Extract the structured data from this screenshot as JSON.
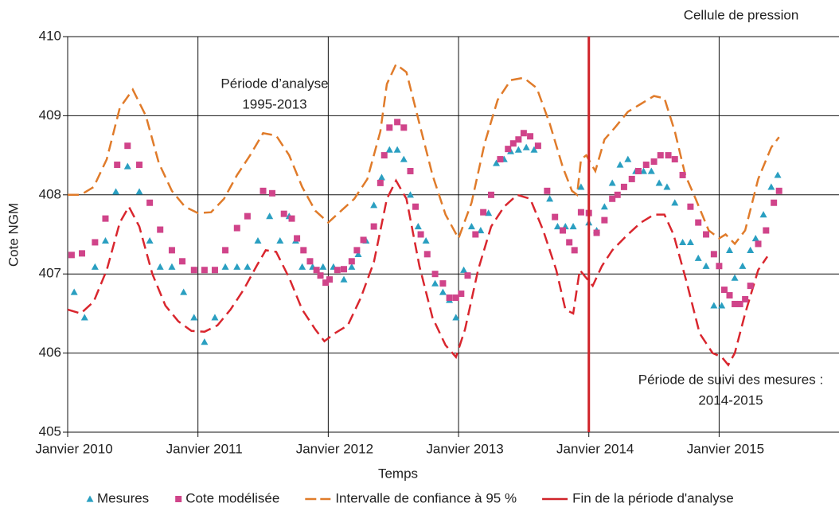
{
  "chart_data": {
    "type": "line",
    "x_label": "Temps",
    "y_label": "Cote NGM",
    "xlim": [
      2010,
      2015.92
    ],
    "ylim": [
      405,
      410
    ],
    "xticks": [
      {
        "value": 2010,
        "label": "Janvier 2010"
      },
      {
        "value": 2011,
        "label": "Janvier 2011"
      },
      {
        "value": 2012,
        "label": "Janvier 2012"
      },
      {
        "value": 2013,
        "label": "Janvier 2013"
      },
      {
        "value": 2014,
        "label": "Janvier 2014"
      },
      {
        "value": 2015,
        "label": "Janvier 2015"
      }
    ],
    "yticks": [
      405,
      406,
      407,
      408,
      409,
      410
    ],
    "grid": true,
    "series": [
      {
        "name": "Mesures",
        "type": "scatter",
        "marker": "triangle",
        "color": "#2a9fc1",
        "x": [
          2010.05,
          2010.13,
          2010.21,
          2010.29,
          2010.37,
          2010.46,
          2010.55,
          2010.63,
          2010.71,
          2010.8,
          2010.89,
          2010.97,
          2011.05,
          2011.13,
          2011.21,
          2011.3,
          2011.38,
          2011.46,
          2011.55,
          2011.63,
          2011.7,
          2011.75,
          2011.8,
          2011.88,
          2011.96,
          2012.04,
          2012.12,
          2012.18,
          2012.23,
          2012.29,
          2012.35,
          2012.41,
          2012.47,
          2012.53,
          2012.58,
          2012.63,
          2012.69,
          2012.75,
          2012.82,
          2012.88,
          2012.93,
          2012.98,
          2013.04,
          2013.1,
          2013.17,
          2013.23,
          2013.29,
          2013.35,
          2013.4,
          2013.46,
          2013.52,
          2013.58,
          2013.7,
          2013.76,
          2013.82,
          2013.88,
          2013.94,
          2014.0,
          2014.06,
          2014.12,
          2014.18,
          2014.24,
          2014.3,
          2014.36,
          2014.42,
          2014.48,
          2014.54,
          2014.6,
          2014.66,
          2014.72,
          2014.78,
          2014.84,
          2014.9,
          2014.96,
          2015.02,
          2015.08,
          2015.12,
          2015.18,
          2015.24,
          2015.28,
          2015.34,
          2015.4,
          2015.45
        ],
        "values": [
          406.77,
          406.45,
          407.09,
          407.42,
          408.04,
          408.36,
          408.04,
          407.42,
          407.09,
          407.09,
          406.77,
          406.45,
          406.14,
          406.45,
          407.09,
          407.09,
          407.09,
          407.42,
          407.73,
          407.42,
          407.73,
          407.42,
          407.09,
          407.09,
          407.09,
          407.09,
          406.93,
          407.09,
          407.25,
          407.42,
          407.87,
          408.22,
          408.57,
          408.57,
          408.45,
          408.0,
          407.6,
          407.42,
          406.88,
          406.77,
          406.67,
          406.45,
          407.05,
          407.6,
          407.55,
          407.77,
          408.4,
          408.45,
          408.55,
          408.57,
          408.6,
          408.57,
          407.95,
          407.6,
          407.6,
          407.6,
          408.1,
          407.65,
          407.55,
          407.85,
          408.15,
          408.38,
          408.45,
          408.3,
          408.3,
          408.3,
          408.15,
          408.1,
          407.9,
          407.4,
          407.4,
          407.2,
          407.1,
          406.6,
          406.6,
          407.3,
          406.95,
          407.1,
          407.3,
          407.45,
          407.75,
          408.1,
          408.25
        ]
      },
      {
        "name": "Cote modélisée",
        "type": "scatter",
        "marker": "square",
        "color": "#d0448a",
        "x": [
          2010.03,
          2010.11,
          2010.21,
          2010.29,
          2010.38,
          2010.46,
          2010.55,
          2010.63,
          2010.71,
          2010.8,
          2010.88,
          2010.97,
          2011.05,
          2011.13,
          2011.21,
          2011.3,
          2011.38,
          2011.5,
          2011.57,
          2011.66,
          2011.72,
          2011.76,
          2011.81,
          2011.86,
          2011.91,
          2011.94,
          2011.98,
          2012.01,
          2012.07,
          2012.12,
          2012.18,
          2012.22,
          2012.27,
          2012.35,
          2012.4,
          2012.43,
          2012.47,
          2012.53,
          2012.58,
          2012.63,
          2012.67,
          2012.71,
          2012.76,
          2012.82,
          2012.88,
          2012.93,
          2012.98,
          2013.02,
          2013.07,
          2013.13,
          2013.19,
          2013.25,
          2013.32,
          2013.38,
          2013.42,
          2013.46,
          2013.5,
          2013.55,
          2013.61,
          2013.68,
          2013.74,
          2013.8,
          2013.85,
          2013.89,
          2013.94,
          2014.0,
          2014.06,
          2014.12,
          2014.18,
          2014.22,
          2014.27,
          2014.33,
          2014.38,
          2014.44,
          2014.5,
          2014.55,
          2014.61,
          2014.66,
          2014.72,
          2014.78,
          2014.84,
          2014.9,
          2014.96,
          2015.0,
          2015.04,
          2015.08,
          2015.12,
          2015.16,
          2015.2,
          2015.24,
          2015.3,
          2015.36,
          2015.42,
          2015.46
        ],
        "values": [
          407.24,
          407.26,
          407.4,
          407.7,
          408.38,
          408.62,
          408.38,
          407.9,
          407.56,
          407.3,
          407.16,
          407.05,
          407.05,
          407.05,
          407.3,
          407.58,
          407.73,
          408.05,
          408.02,
          407.76,
          407.7,
          407.45,
          407.3,
          407.16,
          407.05,
          406.98,
          406.89,
          406.93,
          407.05,
          407.06,
          407.16,
          407.3,
          407.43,
          407.6,
          408.15,
          408.5,
          408.85,
          408.92,
          408.85,
          408.3,
          407.85,
          407.5,
          407.25,
          407.0,
          406.88,
          406.7,
          406.7,
          406.75,
          406.98,
          407.5,
          407.78,
          408.0,
          408.45,
          408.58,
          408.65,
          408.7,
          408.78,
          408.74,
          408.62,
          408.05,
          407.72,
          407.55,
          407.4,
          407.3,
          407.78,
          407.77,
          407.52,
          407.68,
          407.95,
          408.0,
          408.1,
          408.2,
          408.3,
          408.38,
          408.42,
          408.5,
          408.5,
          408.45,
          408.25,
          407.85,
          407.65,
          407.5,
          407.25,
          407.1,
          406.8,
          406.73,
          406.62,
          406.62,
          406.68,
          406.85,
          407.38,
          407.55,
          407.9,
          408.05
        ]
      },
      {
        "name": "Intervalle de confiance à 95 %",
        "type": "line",
        "dash": true,
        "color": "#e07b2a",
        "x": [
          2010.0,
          2010.1,
          2010.2,
          2010.3,
          2010.4,
          2010.5,
          2010.6,
          2010.7,
          2010.8,
          2010.9,
          2011.0,
          2011.1,
          2011.2,
          2011.3,
          2011.4,
          2011.5,
          2011.6,
          2011.7,
          2011.8,
          2011.9,
          2012.0,
          2012.1,
          2012.2,
          2012.3,
          2012.4,
          2012.45,
          2012.52,
          2012.6,
          2012.7,
          2012.8,
          2012.9,
          2013.0,
          2013.1,
          2013.2,
          2013.3,
          2013.4,
          2013.5,
          2013.6,
          2013.7,
          2013.8,
          2013.87,
          2013.91,
          2013.94,
          2013.98,
          2014.05,
          2014.12,
          2014.2,
          2014.3,
          2014.4,
          2014.5,
          2014.58,
          2014.66,
          2014.74,
          2014.82,
          2014.92,
          2015.0,
          2015.05,
          2015.12,
          2015.2,
          2015.3,
          2015.4,
          2015.46
        ],
        "values": [
          408.0,
          408.0,
          408.1,
          408.45,
          409.1,
          409.33,
          409.0,
          408.4,
          408.05,
          407.85,
          407.77,
          407.78,
          407.95,
          408.25,
          408.5,
          408.78,
          408.75,
          408.5,
          408.1,
          407.8,
          407.65,
          407.8,
          407.95,
          408.2,
          408.8,
          409.4,
          409.65,
          409.55,
          408.9,
          408.25,
          407.75,
          407.45,
          407.9,
          408.65,
          409.2,
          409.45,
          409.48,
          409.35,
          408.9,
          408.35,
          408.05,
          408.0,
          408.45,
          408.5,
          408.3,
          408.7,
          408.85,
          409.05,
          409.15,
          409.25,
          409.22,
          408.8,
          408.25,
          407.95,
          407.55,
          407.45,
          407.5,
          407.38,
          407.55,
          408.2,
          408.6,
          408.73
        ]
      },
      {
        "type": "line",
        "dash": true,
        "color": "#d9262e",
        "x": [
          2010.0,
          2010.1,
          2010.2,
          2010.3,
          2010.4,
          2010.47,
          2010.55,
          2010.65,
          2010.75,
          2010.85,
          2010.95,
          2011.05,
          2011.15,
          2011.25,
          2011.35,
          2011.45,
          2011.52,
          2011.6,
          2011.7,
          2011.8,
          2011.9,
          2011.97,
          2012.05,
          2012.15,
          2012.25,
          2012.35,
          2012.45,
          2012.52,
          2012.6,
          2012.7,
          2012.8,
          2012.9,
          2012.98,
          2013.05,
          2013.15,
          2013.25,
          2013.35,
          2013.45,
          2013.55,
          2013.65,
          2013.75,
          2013.82,
          2013.88,
          2013.93,
          2013.98,
          2014.03,
          2014.1,
          2014.18,
          2014.3,
          2014.4,
          2014.5,
          2014.58,
          2014.65,
          2014.75,
          2014.85,
          2014.95,
          2015.02,
          2015.07,
          2015.12,
          2015.2,
          2015.3,
          2015.37
        ],
        "values": [
          406.55,
          406.5,
          406.65,
          407.05,
          407.65,
          407.85,
          407.6,
          407.0,
          406.6,
          406.4,
          406.28,
          406.27,
          406.35,
          406.55,
          406.8,
          407.1,
          407.3,
          407.28,
          406.95,
          406.55,
          406.3,
          406.15,
          406.25,
          406.35,
          406.7,
          407.15,
          407.95,
          408.18,
          407.95,
          407.1,
          406.45,
          406.1,
          405.95,
          406.3,
          407.05,
          407.6,
          407.85,
          408.0,
          407.95,
          407.55,
          407.05,
          406.55,
          406.5,
          407.05,
          406.95,
          406.85,
          407.1,
          407.3,
          407.5,
          407.65,
          407.75,
          407.75,
          407.5,
          406.9,
          406.25,
          406.0,
          405.95,
          405.85,
          406.0,
          406.5,
          407.05,
          407.22
        ]
      }
    ],
    "vline": {
      "name": "Fin de la période d'analyse",
      "x": 2014,
      "color": "#d0232a"
    },
    "annotations": [
      {
        "lines": [
          "Cellule de pression"
        ]
      },
      {
        "lines": [
          "Période d’analyse",
          "1995-2013"
        ]
      },
      {
        "lines": [
          "Période de suivi des mesures :",
          "2014-2015"
        ]
      }
    ]
  }
}
